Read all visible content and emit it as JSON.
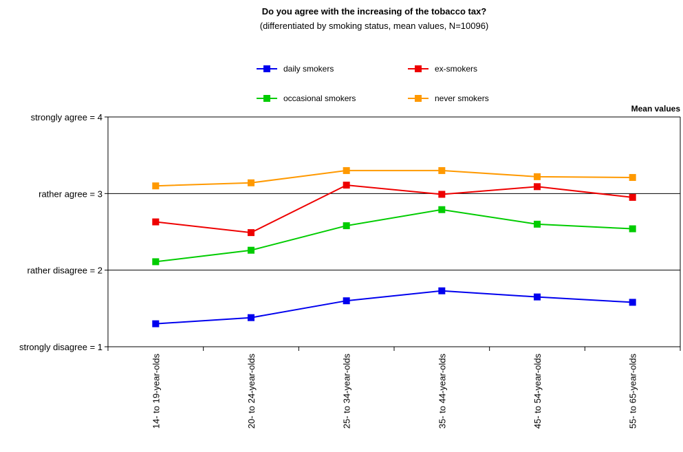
{
  "chart_data": {
    "type": "line",
    "title": "Do you agree with the increasing of the tobacco tax?",
    "subtitle": "(differentiated by smoking status, mean values, N=10096)",
    "unit_label": "Mean values",
    "categories": [
      "14- to 19-year-olds",
      "20- to 24-year-olds",
      "25- to 34-year-olds",
      "35- to 44-year-olds",
      "45- to 54-year-olds",
      "55- to 65-year-olds"
    ],
    "y_ticks": [
      {
        "value": 1,
        "label": "strongly disagree = 1"
      },
      {
        "value": 2,
        "label": "rather disagree = 2"
      },
      {
        "value": 3,
        "label": "rather agree = 3"
      },
      {
        "value": 4,
        "label": "strongly agree = 4"
      }
    ],
    "ylim": [
      1,
      4
    ],
    "grid": "horizontal at 2 and 3",
    "legend_position": "top",
    "series": [
      {
        "name": "daily smokers",
        "color": "#0000ee",
        "values": [
          1.3,
          1.38,
          1.6,
          1.73,
          1.65,
          1.58
        ]
      },
      {
        "name": "ex-smokers",
        "color": "#ee0000",
        "values": [
          2.63,
          2.49,
          3.11,
          2.99,
          3.09,
          2.95
        ]
      },
      {
        "name": "occasional smokers",
        "color": "#00cc00",
        "values": [
          2.11,
          2.26,
          2.58,
          2.79,
          2.6,
          2.54
        ]
      },
      {
        "name": "never smokers",
        "color": "#ff9900",
        "values": [
          3.1,
          3.14,
          3.3,
          3.3,
          3.22,
          3.21
        ]
      }
    ]
  }
}
